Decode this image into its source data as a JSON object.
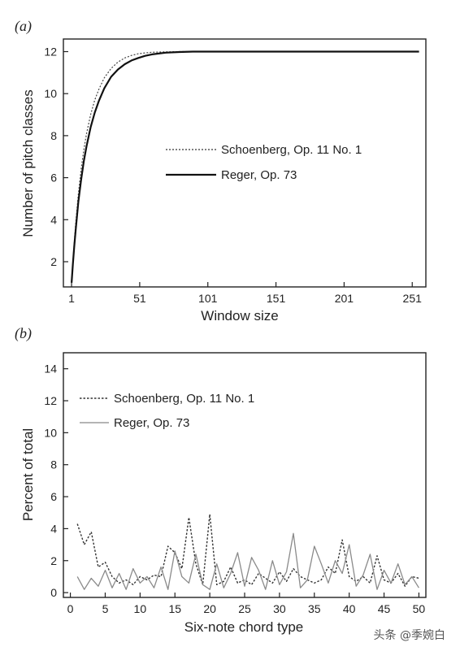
{
  "chart_data": [
    {
      "type": "line",
      "panel_label": "(a)",
      "xlabel": "Window size",
      "ylabel": "Number of pitch classes",
      "xlim": [
        -5,
        261
      ],
      "ylim": [
        0.8,
        12.6
      ],
      "xticks": [
        1,
        51,
        101,
        151,
        201,
        251
      ],
      "yticks": [
        2,
        4,
        6,
        8,
        10,
        12
      ],
      "legend_position": "center-right",
      "series": [
        {
          "name": "Schoenberg, Op. 11 No. 1",
          "style": "dotted",
          "x": [
            1,
            2,
            3,
            4,
            5,
            6,
            8,
            10,
            12,
            15,
            18,
            21,
            25,
            30,
            35,
            40,
            45,
            50,
            55,
            60,
            70,
            80,
            90,
            100,
            120,
            150,
            200,
            256
          ],
          "y": [
            1,
            2.0,
            2.9,
            3.8,
            4.5,
            5.2,
            6.4,
            7.35,
            8.1,
            9.0,
            9.7,
            10.2,
            10.75,
            11.2,
            11.5,
            11.7,
            11.82,
            11.9,
            11.94,
            11.97,
            11.99,
            12,
            12,
            12,
            12,
            12,
            12,
            12
          ]
        },
        {
          "name": "Reger, Op. 73",
          "style": "solid",
          "x": [
            1,
            2,
            3,
            4,
            5,
            6,
            8,
            10,
            12,
            15,
            18,
            21,
            25,
            30,
            35,
            40,
            45,
            50,
            55,
            60,
            70,
            80,
            90,
            100,
            120,
            150,
            200,
            256
          ],
          "y": [
            1,
            1.9,
            2.75,
            3.5,
            4.2,
            4.85,
            5.9,
            6.8,
            7.5,
            8.4,
            9.1,
            9.65,
            10.25,
            10.8,
            11.15,
            11.4,
            11.58,
            11.7,
            11.8,
            11.87,
            11.95,
            11.98,
            12,
            12,
            12,
            12,
            12,
            12
          ]
        }
      ]
    },
    {
      "type": "line",
      "panel_label": "(b)",
      "xlabel": "Six-note chord type",
      "ylabel": "Percent of total",
      "xlim": [
        -1,
        51
      ],
      "ylim": [
        -0.3,
        15
      ],
      "xticks": [
        0,
        5,
        10,
        15,
        20,
        25,
        30,
        35,
        40,
        45,
        50
      ],
      "yticks": [
        0,
        2,
        4,
        6,
        8,
        10,
        12,
        14
      ],
      "legend_position": "top-left",
      "series": [
        {
          "name": "Schoenberg, Op. 11 No. 1",
          "style": "dotted",
          "x": [
            1,
            2,
            3,
            4,
            5,
            6,
            7,
            8,
            9,
            10,
            11,
            12,
            13,
            14,
            15,
            16,
            17,
            18,
            19,
            20,
            21,
            22,
            23,
            24,
            25,
            26,
            27,
            28,
            29,
            30,
            31,
            32,
            33,
            34,
            35,
            36,
            37,
            38,
            39,
            40,
            41,
            42,
            43,
            44,
            45,
            46,
            47,
            48,
            49,
            50
          ],
          "y": [
            4.3,
            3.0,
            3.8,
            1.6,
            1.9,
            1.0,
            0.6,
            0.8,
            0.5,
            1.0,
            0.8,
            1.1,
            1.0,
            2.9,
            2.5,
            1.5,
            4.7,
            1.8,
            0.5,
            4.9,
            0.5,
            0.7,
            1.6,
            0.6,
            0.8,
            0.5,
            1.2,
            0.9,
            0.6,
            1.3,
            0.7,
            1.5,
            1.0,
            0.8,
            0.6,
            0.8,
            1.6,
            1.2,
            3.3,
            1.0,
            0.7,
            1.0,
            0.6,
            2.3,
            0.8,
            0.6,
            1.2,
            0.4,
            1.0,
            0.9
          ]
        },
        {
          "name": "Reger, Op. 73",
          "style": "solid",
          "x": [
            1,
            2,
            3,
            4,
            5,
            6,
            7,
            8,
            9,
            10,
            11,
            12,
            13,
            14,
            15,
            16,
            17,
            18,
            19,
            20,
            21,
            22,
            23,
            24,
            25,
            26,
            27,
            28,
            29,
            30,
            31,
            32,
            33,
            34,
            35,
            36,
            37,
            38,
            39,
            40,
            41,
            42,
            43,
            44,
            45,
            46,
            47,
            48,
            49,
            50
          ],
          "y": [
            1.0,
            0.2,
            0.9,
            0.4,
            1.4,
            0.3,
            1.2,
            0.2,
            1.5,
            0.6,
            1.0,
            0.3,
            1.6,
            0.2,
            2.6,
            1.0,
            0.6,
            2.4,
            0.5,
            0.2,
            1.8,
            0.3,
            1.2,
            2.5,
            0.4,
            2.2,
            1.4,
            0.2,
            2.0,
            0.5,
            1.3,
            3.7,
            0.3,
            0.8,
            2.9,
            1.8,
            0.6,
            2.0,
            1.2,
            3.0,
            0.4,
            1.1,
            2.4,
            0.2,
            1.4,
            0.6,
            1.8,
            0.5,
            1.0,
            0.3
          ]
        }
      ]
    }
  ],
  "watermark": "头条 @季婉白"
}
